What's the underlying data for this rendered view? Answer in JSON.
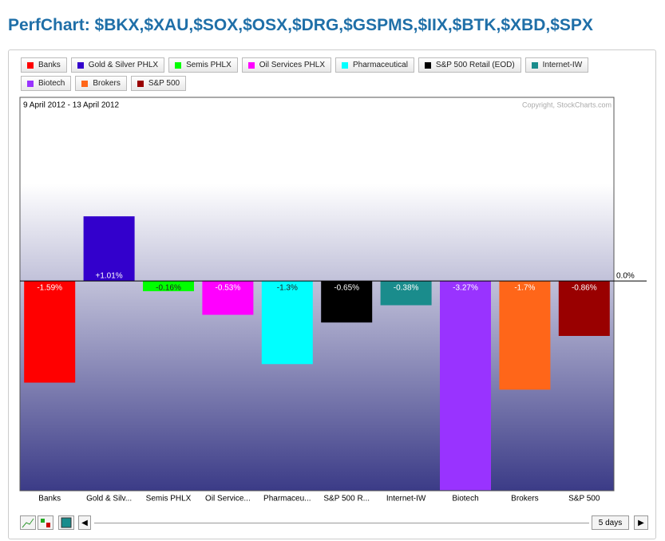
{
  "header": {
    "title": "PerfChart: $BKX,$XAU,$SOX,$OSX,$DRG,$GSPMS,$IIX,$BTK,$XBD,$SPX"
  },
  "chart_data": {
    "type": "bar",
    "subtitle": "9 April 2012 - 13 April 2012",
    "annotation": "Copyright, StockCharts.com",
    "legend": [
      "Banks",
      "Gold & Silver PHLX",
      "Semis PHLX",
      "Oil Services PHLX",
      "Pharmaceutical",
      "S&P 500 Retail (EOD)",
      "Internet-IW",
      "Biotech",
      "Brokers",
      "S&P 500"
    ],
    "categories": [
      "Banks",
      "Gold & Silv...",
      "Semis PHLX",
      "Oil Service...",
      "Pharmaceu...",
      "S&P 500 R...",
      "Internet-IW",
      "Biotech",
      "Brokers",
      "S&P 500"
    ],
    "values": [
      -1.59,
      1.01,
      -0.16,
      -0.53,
      -1.3,
      -0.65,
      -0.38,
      -3.27,
      -1.7,
      -0.86
    ],
    "value_labels": [
      "-1.59%",
      "+1.01%",
      "-0.16%",
      "-0.53%",
      "-1.3%",
      "-0.65%",
      "-0.38%",
      "-3.27%",
      "-1.7%",
      "-0.86%"
    ],
    "colors": [
      "#ff0000",
      "#3300cc",
      "#00ff00",
      "#ff00ff",
      "#00ffff",
      "#000000",
      "#1a8c8c",
      "#9933ff",
      "#ff6619",
      "#990000"
    ],
    "ylim": [
      -3.28,
      2.87
    ],
    "yticks": [
      {
        "value": 0,
        "label": "0.0%"
      }
    ]
  },
  "controls": {
    "period": "5 days"
  }
}
